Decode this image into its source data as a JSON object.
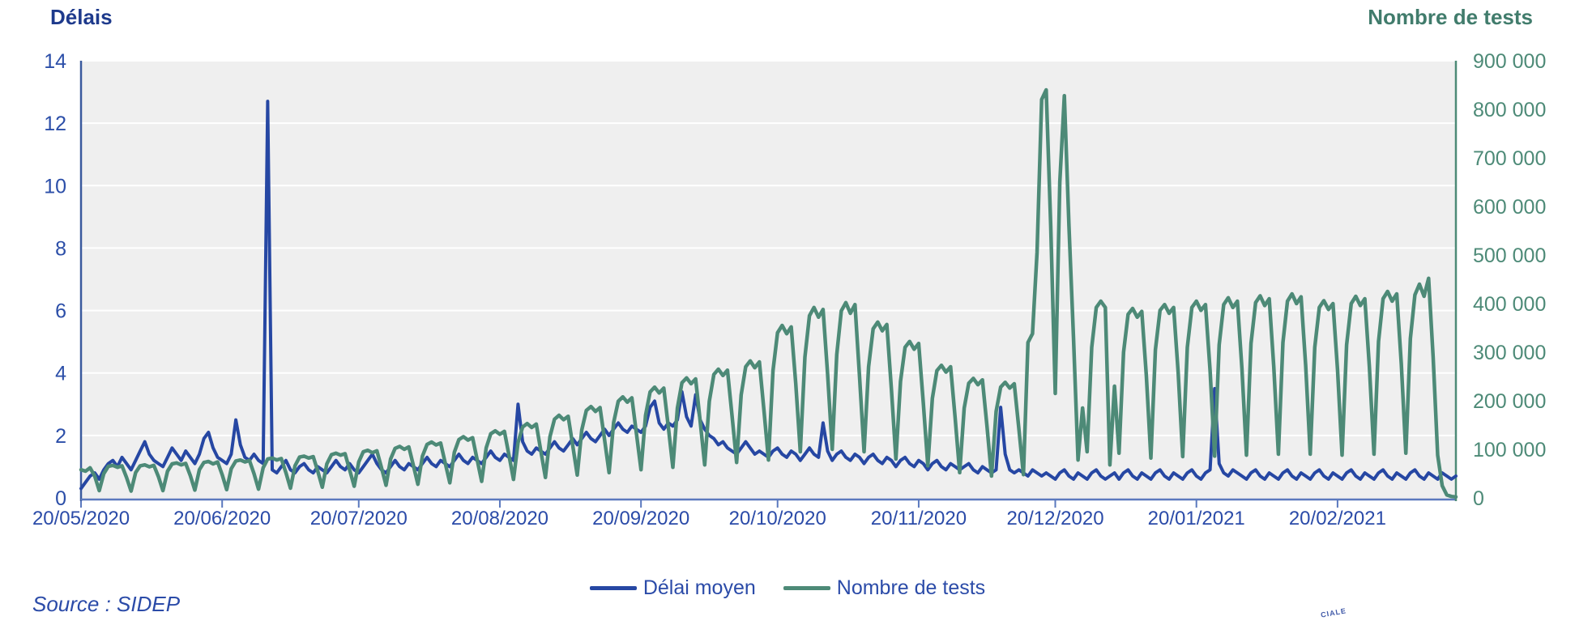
{
  "header": {
    "left_axis_title": "Délais",
    "right_axis_title": "Nombre de tests"
  },
  "legend": {
    "items": [
      {
        "label": "Délai moyen",
        "color": "#2647a3"
      },
      {
        "label": "Nombre de tests",
        "color": "#4d8a77"
      }
    ]
  },
  "source_text": "Source : SIDEP",
  "watermark_fragment": "CIALE",
  "colors": {
    "plot_background": "#efefef",
    "gridline": "#ffffff",
    "left_axis_line": "#3a5a9e",
    "bottom_axis_line": "#5b79be",
    "right_axis_line": "#4d8a77",
    "left_tick_text": "#2b4ea8",
    "right_tick_text": "#4d8a77",
    "x_tick_text": "#2b4ba8"
  },
  "chart_data": {
    "type": "line",
    "title": "",
    "x_start_date": "20/05/2020",
    "x_end_date": "18/03/2021",
    "x_tick_labels": [
      "20/05/2020",
      "20/06/2020",
      "20/07/2020",
      "20/08/2020",
      "20/09/2020",
      "20/10/2020",
      "20/11/2020",
      "20/12/2020",
      "20/01/2021",
      "20/02/2021"
    ],
    "x_tick_day_index": [
      0,
      31,
      61,
      92,
      123,
      153,
      184,
      214,
      245,
      276
    ],
    "grid": true,
    "legend_position": "bottom",
    "left_axis": {
      "title": "Délais",
      "min": 0,
      "max": 14,
      "tick_step": 2,
      "tick_labels": [
        "0",
        "2",
        "4",
        "6",
        "8",
        "10",
        "12",
        "14"
      ]
    },
    "right_axis": {
      "title": "Nombre de tests",
      "min": 0,
      "max": 900000,
      "tick_step": 100000,
      "tick_labels": [
        "0",
        "100 000",
        "200 000",
        "300 000",
        "400 000",
        "500 000",
        "600 000",
        "700 000",
        "800 000",
        "900 000"
      ]
    },
    "series": [
      {
        "name": "Délai moyen",
        "axis": "left",
        "color": "#2647a3",
        "stroke_width": 4,
        "values": [
          0.3,
          0.5,
          0.7,
          0.8,
          0.6,
          0.9,
          1.1,
          1.2,
          1.0,
          1.3,
          1.1,
          0.9,
          1.2,
          1.5,
          1.8,
          1.4,
          1.2,
          1.1,
          1.0,
          1.3,
          1.6,
          1.4,
          1.2,
          1.5,
          1.3,
          1.1,
          1.4,
          1.9,
          2.1,
          1.6,
          1.3,
          1.2,
          1.1,
          1.4,
          2.5,
          1.7,
          1.3,
          1.2,
          1.4,
          1.2,
          1.1,
          12.7,
          0.9,
          0.8,
          1.0,
          1.2,
          0.9,
          0.8,
          1.0,
          1.1,
          0.9,
          0.8,
          1.0,
          0.9,
          0.8,
          1.0,
          1.2,
          1.0,
          0.9,
          1.1,
          0.9,
          0.8,
          1.0,
          1.2,
          1.4,
          1.1,
          0.9,
          0.8,
          1.0,
          1.2,
          1.0,
          0.9,
          1.1,
          1.0,
          0.9,
          1.1,
          1.3,
          1.1,
          1.0,
          1.2,
          1.1,
          1.0,
          1.2,
          1.4,
          1.2,
          1.1,
          1.3,
          1.2,
          1.1,
          1.3,
          1.5,
          1.3,
          1.2,
          1.4,
          1.3,
          1.2,
          3.0,
          1.8,
          1.5,
          1.4,
          1.6,
          1.5,
          1.4,
          1.6,
          1.8,
          1.6,
          1.5,
          1.7,
          1.9,
          1.7,
          1.9,
          2.1,
          1.9,
          1.8,
          2.0,
          2.2,
          2.0,
          2.2,
          2.4,
          2.2,
          2.1,
          2.3,
          2.2,
          2.1,
          2.3,
          2.9,
          3.1,
          2.4,
          2.2,
          2.4,
          2.3,
          2.5,
          3.4,
          2.6,
          2.3,
          3.3,
          2.5,
          2.2,
          2.0,
          1.9,
          1.7,
          1.8,
          1.6,
          1.5,
          1.4,
          1.6,
          1.8,
          1.6,
          1.4,
          1.5,
          1.4,
          1.3,
          1.5,
          1.6,
          1.4,
          1.3,
          1.5,
          1.4,
          1.2,
          1.4,
          1.6,
          1.4,
          1.3,
          2.4,
          1.5,
          1.2,
          1.4,
          1.5,
          1.3,
          1.2,
          1.4,
          1.3,
          1.1,
          1.3,
          1.4,
          1.2,
          1.1,
          1.3,
          1.2,
          1.0,
          1.2,
          1.3,
          1.1,
          1.0,
          1.2,
          1.1,
          0.9,
          1.1,
          1.2,
          1.0,
          0.9,
          1.1,
          1.0,
          0.9,
          1.0,
          1.1,
          0.9,
          0.8,
          1.0,
          0.9,
          0.8,
          0.9,
          2.9,
          1.4,
          0.9,
          0.8,
          0.9,
          0.8,
          0.7,
          0.9,
          0.8,
          0.7,
          0.8,
          0.7,
          0.6,
          0.8,
          0.9,
          0.7,
          0.6,
          0.8,
          0.7,
          0.6,
          0.8,
          0.9,
          0.7,
          0.6,
          0.7,
          0.8,
          0.6,
          0.8,
          0.9,
          0.7,
          0.6,
          0.8,
          0.7,
          0.6,
          0.8,
          0.9,
          0.7,
          0.6,
          0.8,
          0.7,
          0.6,
          0.8,
          0.9,
          0.7,
          0.6,
          0.8,
          0.9,
          3.5,
          1.1,
          0.8,
          0.7,
          0.9,
          0.8,
          0.7,
          0.6,
          0.8,
          0.9,
          0.7,
          0.6,
          0.8,
          0.7,
          0.6,
          0.8,
          0.9,
          0.7,
          0.6,
          0.8,
          0.7,
          0.6,
          0.8,
          0.9,
          0.7,
          0.6,
          0.8,
          0.7,
          0.6,
          0.8,
          0.9,
          0.7,
          0.6,
          0.8,
          0.7,
          0.6,
          0.8,
          0.9,
          0.7,
          0.6,
          0.8,
          0.7,
          0.6,
          0.8,
          0.9,
          0.7,
          0.6,
          0.8,
          0.7,
          0.6,
          0.8,
          0.7,
          0.6,
          0.7
        ]
      },
      {
        "name": "Nombre de tests",
        "axis": "right",
        "color": "#4d8a77",
        "stroke_width": 4.5,
        "values": [
          58000,
          55000,
          62000,
          45000,
          15000,
          50000,
          65000,
          67000,
          63000,
          66000,
          42000,
          14000,
          52000,
          66000,
          68000,
          64000,
          67000,
          44000,
          15000,
          55000,
          70000,
          72000,
          68000,
          71000,
          46000,
          16000,
          58000,
          73000,
          75000,
          70000,
          74000,
          48000,
          17000,
          60000,
          76000,
          78000,
          74000,
          77000,
          50000,
          18000,
          62000,
          80000,
          82000,
          78000,
          81000,
          52000,
          20000,
          66000,
          84000,
          86000,
          82000,
          85000,
          55000,
          22000,
          70000,
          89000,
          92000,
          88000,
          91000,
          58000,
          24000,
          74000,
          95000,
          98000,
          93000,
          97000,
          62000,
          26000,
          80000,
          102000,
          106000,
          100000,
          105000,
          67000,
          28000,
          86000,
          110000,
          115000,
          109000,
          113000,
          72000,
          31000,
          94000,
          120000,
          126000,
          119000,
          124000,
          79000,
          34000,
          103000,
          132000,
          138000,
          131000,
          137000,
          88000,
          38000,
          114000,
          146000,
          153000,
          145000,
          152000,
          97000,
          42000,
          126000,
          162000,
          170000,
          161000,
          168000,
          108000,
          47000,
          140000,
          180000,
          188000,
          178000,
          186000,
          120000,
          52000,
          155000,
          199000,
          208000,
          197000,
          206000,
          133000,
          58000,
          170000,
          218000,
          228000,
          216000,
          226000,
          146000,
          63000,
          185000,
          237000,
          247000,
          235000,
          245000,
          158000,
          68000,
          199000,
          254000,
          265000,
          252000,
          263000,
          170000,
          73000,
          212000,
          270000,
          282000,
          268000,
          280000,
          181000,
          78000,
          262000,
          340000,
          355000,
          338000,
          352000,
          235000,
          95000,
          290000,
          375000,
          392000,
          372000,
          388000,
          255000,
          100000,
          295000,
          385000,
          402000,
          380000,
          398000,
          250000,
          95000,
          270000,
          348000,
          362000,
          344000,
          357000,
          225000,
          80000,
          240000,
          310000,
          322000,
          306000,
          318000,
          196000,
          66000,
          205000,
          262000,
          273000,
          259000,
          270000,
          165000,
          52000,
          185000,
          236000,
          246000,
          233000,
          243000,
          148000,
          45000,
          178000,
          228000,
          238000,
          226000,
          235000,
          142000,
          48000,
          320000,
          338000,
          505000,
          820000,
          840000,
          560000,
          215000,
          650000,
          828000,
          560000,
          330000,
          78000,
          185000,
          95000,
          310000,
          392000,
          405000,
          392000,
          68000,
          230000,
          92000,
          300000,
          378000,
          390000,
          372000,
          384000,
          252000,
          82000,
          305000,
          386000,
          398000,
          380000,
          392000,
          258000,
          85000,
          310000,
          392000,
          405000,
          386000,
          398000,
          262000,
          86000,
          315000,
          398000,
          412000,
          392000,
          405000,
          266000,
          88000,
          318000,
          402000,
          416000,
          396000,
          410000,
          270000,
          90000,
          320000,
          405000,
          420000,
          400000,
          414000,
          272000,
          90000,
          310000,
          392000,
          406000,
          388000,
          400000,
          264000,
          88000,
          315000,
          400000,
          415000,
          396000,
          410000,
          270000,
          90000,
          322000,
          410000,
          425000,
          405000,
          420000,
          276000,
          92000,
          328000,
          418000,
          440000,
          415000,
          452000,
          290000,
          88000,
          25000,
          6000,
          3000,
          2000
        ]
      }
    ]
  }
}
